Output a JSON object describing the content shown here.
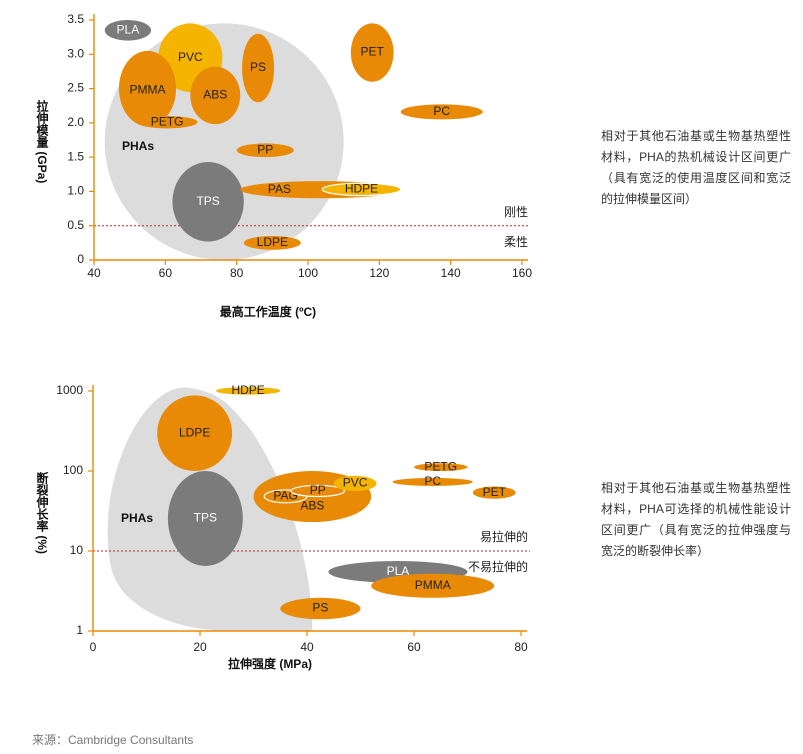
{
  "chart_data": [
    {
      "type": "scatter",
      "subtype": "bubble",
      "xlabel": "最高工作温度 (ºC)",
      "ylabel": "拉伸模量 (GPa)",
      "xlim": [
        40,
        160
      ],
      "ylim": [
        0,
        3.5
      ],
      "xticks": [
        "40",
        "60",
        "80",
        "100",
        "120",
        "140",
        "160"
      ],
      "yticks": [
        "0",
        "0.5",
        "1.0",
        "1.5",
        "2.0",
        "2.5",
        "3.0",
        "3.5"
      ],
      "threshold": {
        "y": 0.5,
        "above_label": "刚性",
        "below_label": "柔性"
      },
      "regions": [
        {
          "label": "PHAs",
          "x_range": [
            43,
            110
          ],
          "y_range": [
            0,
            3.45
          ]
        }
      ],
      "points": [
        {
          "label": "PLA",
          "x": 50,
          "y": 3.35,
          "x_range": [
            43,
            56
          ],
          "y_range": [
            3.2,
            3.5
          ],
          "color": "#7b7b7b"
        },
        {
          "label": "PVC",
          "x": 67,
          "y": 2.95,
          "x_range": [
            58,
            76
          ],
          "y_range": [
            2.45,
            3.45
          ],
          "color": "#f5b400"
        },
        {
          "label": "PMMA",
          "x": 55,
          "y": 2.5,
          "x_range": [
            47,
            63
          ],
          "y_range": [
            1.95,
            3.05
          ],
          "color": "#e98a06"
        },
        {
          "label": "ABS",
          "x": 74,
          "y": 2.4,
          "x_range": [
            67,
            81
          ],
          "y_range": [
            1.98,
            2.82
          ],
          "color": "#e98a06"
        },
        {
          "label": "PS",
          "x": 86,
          "y": 2.8,
          "x_range": [
            81.5,
            90.5
          ],
          "y_range": [
            2.3,
            3.3
          ],
          "color": "#e98a06"
        },
        {
          "label": "PETG",
          "x": 61,
          "y": 2.0,
          "x_range": [
            52,
            69
          ],
          "y_range": [
            1.92,
            2.1
          ],
          "color": "#e98a06"
        },
        {
          "label": "PET",
          "x": 118,
          "y": 3.0,
          "x_range": [
            112,
            124
          ],
          "y_range": [
            2.6,
            3.45
          ],
          "color": "#e98a06"
        },
        {
          "label": "PC",
          "x": 138,
          "y": 2.15,
          "x_range": [
            126,
            149
          ],
          "y_range": [
            2.05,
            2.27
          ],
          "color": "#e98a06"
        },
        {
          "label": "PP",
          "x": 88,
          "y": 1.6,
          "x_range": [
            80,
            96
          ],
          "y_range": [
            1.5,
            1.7
          ],
          "color": "#e98a06"
        },
        {
          "label": "TPS",
          "x": 72,
          "y": 0.85,
          "x_range": [
            62,
            82
          ],
          "y_range": [
            0.27,
            1.43
          ],
          "color": "#7b7b7b"
        },
        {
          "label": "PAS",
          "x": 103,
          "y": 1.03,
          "x_range": [
            81,
            126
          ],
          "y_range": [
            0.9,
            1.15
          ],
          "color": "#e98a06"
        },
        {
          "label": "HDPE",
          "x": 115,
          "y": 1.03,
          "x_range": [
            104,
            126
          ],
          "y_range": [
            0.94,
            1.12
          ],
          "color": "#f5b400"
        },
        {
          "label": "LDPE",
          "x": 90,
          "y": 0.25,
          "x_range": [
            82,
            98
          ],
          "y_range": [
            0.15,
            0.35
          ],
          "color": "#e98a06"
        }
      ]
    },
    {
      "type": "scatter",
      "subtype": "bubble",
      "xlabel": "拉伸强度 (MPa)",
      "ylabel": "断裂伸长率 (%)",
      "xlim": [
        0,
        80
      ],
      "ylim": [
        1,
        1000
      ],
      "yscale": "log",
      "xticks": [
        "0",
        "20",
        "40",
        "60",
        "80"
      ],
      "yticks": [
        "1",
        "10",
        "100",
        "1000"
      ],
      "threshold": {
        "y": 10,
        "above_label": "易拉伸的",
        "below_label": "不易拉伸的"
      },
      "regions": [
        {
          "label": "PHAs",
          "x_range": [
            1,
            41
          ],
          "y_range": [
            1,
            1100
          ]
        }
      ],
      "points": [
        {
          "label": "HDPE",
          "x": 29,
          "y": 1000,
          "x_range": [
            23,
            35
          ],
          "y_range": [
            900,
            1120
          ],
          "color": "#f5b400"
        },
        {
          "label": "LDPE",
          "x": 19,
          "y": 300,
          "x_range": [
            12,
            26
          ],
          "y_range": [
            100,
            880
          ],
          "color": "#e98a06"
        },
        {
          "label": "TPS",
          "x": 21,
          "y": 25,
          "x_range": [
            14,
            28
          ],
          "y_range": [
            6.5,
            100
          ],
          "color": "#7b7b7b"
        },
        {
          "label": "ABS",
          "x": 41,
          "y": 47,
          "x_range": [
            30,
            52
          ],
          "y_range": [
            23,
            100
          ],
          "color": "#e98a06"
        },
        {
          "label": "PAG",
          "x": 36,
          "y": 48,
          "x_range": [
            32,
            40
          ],
          "y_range": [
            40,
            58
          ],
          "color": "#e98a06"
        },
        {
          "label": "PP",
          "x": 42,
          "y": 56,
          "x_range": [
            37,
            47
          ],
          "y_range": [
            48,
            66
          ],
          "color": "#e98a06"
        },
        {
          "label": "PVC",
          "x": 49,
          "y": 70,
          "x_range": [
            45,
            53
          ],
          "y_range": [
            56,
            87
          ],
          "color": "#f5b400"
        },
        {
          "label": "PETG",
          "x": 65,
          "y": 112,
          "x_range": [
            60,
            70
          ],
          "y_range": [
            100,
            125
          ],
          "color": "#e98a06"
        },
        {
          "label": "PC",
          "x": 64,
          "y": 73,
          "x_range": [
            56,
            71
          ],
          "y_range": [
            65,
            82
          ],
          "color": "#e98a06"
        },
        {
          "label": "PET",
          "x": 75,
          "y": 54,
          "x_range": [
            71,
            79
          ],
          "y_range": [
            45,
            64
          ],
          "color": "#e98a06"
        },
        {
          "label": "PLA",
          "x": 57,
          "y": 5.5,
          "x_range": [
            44,
            70
          ],
          "y_range": [
            4,
            7.5
          ],
          "color": "#7b7b7b"
        },
        {
          "label": "PMMA",
          "x": 64,
          "y": 3.7,
          "x_range": [
            52,
            75
          ],
          "y_range": [
            2.6,
            5.2
          ],
          "color": "#e98a06"
        },
        {
          "label": "PS",
          "x": 43,
          "y": 1.9,
          "x_range": [
            35,
            50
          ],
          "y_range": [
            1.4,
            2.6
          ],
          "color": "#e98a06"
        }
      ]
    }
  ],
  "descriptions": {
    "chart1": "相对于其他石油基或生物基热塑性材料，PHA的热机械设计区间更广（具有宽泛的使用温度区间和宽泛的拉伸模量区间）",
    "chart2": "相对于其他石油基或生物基热塑性材料，PHA可选择的机械性能设计区间更广（具有宽泛的拉伸强度与宽泛的断裂伸长率）"
  },
  "source": "来源：Cambridge Consultants",
  "colors": {
    "orange": "#e98a06",
    "yellow": "#f5b400",
    "gray": "#7b7b7b",
    "region": "#dcdcdc",
    "axis": "#e98a06",
    "threshold": "#c0272d"
  }
}
